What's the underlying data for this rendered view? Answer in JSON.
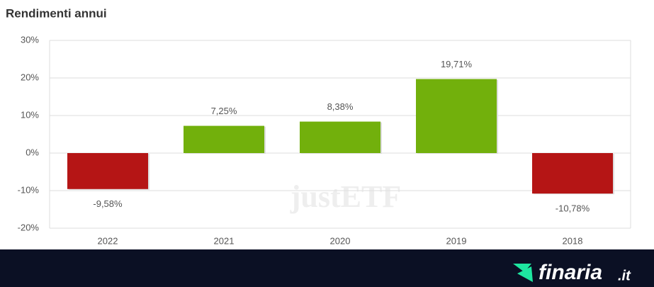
{
  "chart_data": {
    "type": "bar",
    "title": "Rendimenti annui",
    "categories": [
      "2022",
      "2021",
      "2020",
      "2019",
      "2018"
    ],
    "values": [
      -9.58,
      7.25,
      8.38,
      19.71,
      -10.78
    ],
    "value_labels": [
      "-9,58%",
      "7,25%",
      "8,38%",
      "19,71%",
      "-10,78%"
    ],
    "colors": [
      "#b51515",
      "#72b00c",
      "#72b00c",
      "#72b00c",
      "#b51515"
    ],
    "ylim": [
      -20,
      30
    ],
    "yticks": [
      {
        "value": -20,
        "label": "-20%"
      },
      {
        "value": -10,
        "label": "-10%"
      },
      {
        "value": 0,
        "label": "0%"
      },
      {
        "value": 10,
        "label": "10%"
      },
      {
        "value": 20,
        "label": "20%"
      },
      {
        "value": 30,
        "label": "30%"
      }
    ],
    "grid": true,
    "watermark": "justETF"
  },
  "footer": {
    "brand": "finaria",
    "suffix": ".it"
  }
}
